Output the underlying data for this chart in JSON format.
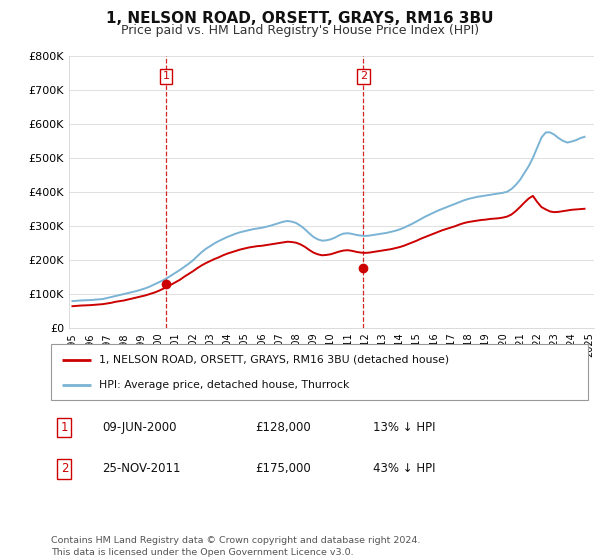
{
  "title": "1, NELSON ROAD, ORSETT, GRAYS, RM16 3BU",
  "subtitle": "Price paid vs. HM Land Registry's House Price Index (HPI)",
  "ylim": [
    0,
    800000
  ],
  "yticks": [
    0,
    100000,
    200000,
    300000,
    400000,
    500000,
    600000,
    700000,
    800000
  ],
  "ytick_labels": [
    "£0",
    "£100K",
    "£200K",
    "£300K",
    "£400K",
    "£500K",
    "£600K",
    "£700K",
    "£800K"
  ],
  "sale1_year": 2000.44,
  "sale1_price": 128000,
  "sale1_label": "1",
  "sale1_date": "09-JUN-2000",
  "sale1_pct": "13%",
  "sale2_year": 2011.9,
  "sale2_price": 175000,
  "sale2_label": "2",
  "sale2_date": "25-NOV-2011",
  "sale2_pct": "43%",
  "line_color_red": "#cc0000",
  "line_color_blue": "#7ab3d4",
  "marker_color_red": "#cc0000",
  "dashed_line_color": "#cc0000",
  "grid_color": "#e0e0e0",
  "legend_label_red": "1, NELSON ROAD, ORSETT, GRAYS, RM16 3BU (detached house)",
  "legend_label_blue": "HPI: Average price, detached house, Thurrock",
  "footer": "Contains HM Land Registry data © Crown copyright and database right 2024.\nThis data is licensed under the Open Government Licence v3.0.",
  "hpi_years": [
    1995.0,
    1995.25,
    1995.5,
    1995.75,
    1996.0,
    1996.25,
    1996.5,
    1996.75,
    1997.0,
    1997.25,
    1997.5,
    1997.75,
    1998.0,
    1998.25,
    1998.5,
    1998.75,
    1999.0,
    1999.25,
    1999.5,
    1999.75,
    2000.0,
    2000.25,
    2000.5,
    2000.75,
    2001.0,
    2001.25,
    2001.5,
    2001.75,
    2002.0,
    2002.25,
    2002.5,
    2002.75,
    2003.0,
    2003.25,
    2003.5,
    2003.75,
    2004.0,
    2004.25,
    2004.5,
    2004.75,
    2005.0,
    2005.25,
    2005.5,
    2005.75,
    2006.0,
    2006.25,
    2006.5,
    2006.75,
    2007.0,
    2007.25,
    2007.5,
    2007.75,
    2008.0,
    2008.25,
    2008.5,
    2008.75,
    2009.0,
    2009.25,
    2009.5,
    2009.75,
    2010.0,
    2010.25,
    2010.5,
    2010.75,
    2011.0,
    2011.25,
    2011.5,
    2011.75,
    2012.0,
    2012.25,
    2012.5,
    2012.75,
    2013.0,
    2013.25,
    2013.5,
    2013.75,
    2014.0,
    2014.25,
    2014.5,
    2014.75,
    2015.0,
    2015.25,
    2015.5,
    2015.75,
    2016.0,
    2016.25,
    2016.5,
    2016.75,
    2017.0,
    2017.25,
    2017.5,
    2017.75,
    2018.0,
    2018.25,
    2018.5,
    2018.75,
    2019.0,
    2019.25,
    2019.5,
    2019.75,
    2020.0,
    2020.25,
    2020.5,
    2020.75,
    2021.0,
    2021.25,
    2021.5,
    2021.75,
    2022.0,
    2022.25,
    2022.5,
    2022.75,
    2023.0,
    2023.25,
    2023.5,
    2023.75,
    2024.0,
    2024.25,
    2024.5,
    2024.75
  ],
  "hpi_values": [
    78000,
    79000,
    80000,
    80500,
    81000,
    82000,
    83000,
    84000,
    87000,
    90000,
    93000,
    96000,
    99000,
    102000,
    105000,
    108000,
    112000,
    116000,
    121000,
    127000,
    133000,
    139000,
    146000,
    154000,
    162000,
    170000,
    179000,
    188000,
    198000,
    210000,
    222000,
    232000,
    240000,
    248000,
    255000,
    261000,
    267000,
    272000,
    277000,
    281000,
    284000,
    287000,
    290000,
    292000,
    294000,
    297000,
    300000,
    304000,
    308000,
    312000,
    314000,
    312000,
    308000,
    300000,
    290000,
    278000,
    267000,
    260000,
    256000,
    257000,
    260000,
    265000,
    272000,
    277000,
    278000,
    276000,
    273000,
    271000,
    270000,
    271000,
    273000,
    275000,
    277000,
    279000,
    282000,
    285000,
    289000,
    294000,
    300000,
    306000,
    313000,
    320000,
    327000,
    333000,
    339000,
    345000,
    350000,
    355000,
    360000,
    365000,
    370000,
    375000,
    379000,
    382000,
    385000,
    387000,
    389000,
    391000,
    393000,
    395000,
    397000,
    400000,
    408000,
    420000,
    435000,
    455000,
    475000,
    500000,
    530000,
    560000,
    575000,
    575000,
    568000,
    558000,
    550000,
    545000,
    548000,
    552000,
    558000,
    562000
  ],
  "red_years": [
    1995.0,
    1995.25,
    1995.5,
    1995.75,
    1996.0,
    1996.25,
    1996.5,
    1996.75,
    1997.0,
    1997.25,
    1997.5,
    1997.75,
    1998.0,
    1998.25,
    1998.5,
    1998.75,
    1999.0,
    1999.25,
    1999.5,
    1999.75,
    2000.0,
    2000.25,
    2000.5,
    2000.75,
    2001.0,
    2001.25,
    2001.5,
    2001.75,
    2002.0,
    2002.25,
    2002.5,
    2002.75,
    2003.0,
    2003.25,
    2003.5,
    2003.75,
    2004.0,
    2004.25,
    2004.5,
    2004.75,
    2005.0,
    2005.25,
    2005.5,
    2005.75,
    2006.0,
    2006.25,
    2006.5,
    2006.75,
    2007.0,
    2007.25,
    2007.5,
    2007.75,
    2008.0,
    2008.25,
    2008.5,
    2008.75,
    2009.0,
    2009.25,
    2009.5,
    2009.75,
    2010.0,
    2010.25,
    2010.5,
    2010.75,
    2011.0,
    2011.25,
    2011.5,
    2011.75,
    2012.0,
    2012.25,
    2012.5,
    2012.75,
    2013.0,
    2013.25,
    2013.5,
    2013.75,
    2014.0,
    2014.25,
    2014.5,
    2014.75,
    2015.0,
    2015.25,
    2015.5,
    2015.75,
    2016.0,
    2016.25,
    2016.5,
    2016.75,
    2017.0,
    2017.25,
    2017.5,
    2017.75,
    2018.0,
    2018.25,
    2018.5,
    2018.75,
    2019.0,
    2019.25,
    2019.5,
    2019.75,
    2020.0,
    2020.25,
    2020.5,
    2020.75,
    2021.0,
    2021.25,
    2021.5,
    2021.75,
    2022.0,
    2022.25,
    2022.5,
    2022.75,
    2023.0,
    2023.25,
    2023.5,
    2023.75,
    2024.0,
    2024.25,
    2024.5,
    2024.75
  ],
  "red_values": [
    63000,
    64000,
    65000,
    65500,
    66000,
    67000,
    68000,
    69000,
    71000,
    73000,
    76000,
    78000,
    80000,
    83000,
    86000,
    89000,
    92000,
    95000,
    99000,
    103000,
    108000,
    114000,
    120000,
    127000,
    134000,
    141000,
    150000,
    158000,
    166000,
    175000,
    183000,
    190000,
    196000,
    202000,
    207000,
    213000,
    218000,
    222000,
    226000,
    230000,
    233000,
    236000,
    238000,
    240000,
    241000,
    243000,
    245000,
    247000,
    249000,
    251000,
    253000,
    252000,
    250000,
    245000,
    238000,
    229000,
    221000,
    216000,
    213000,
    214000,
    216000,
    220000,
    224000,
    227000,
    228000,
    226000,
    223000,
    221000,
    220000,
    221000,
    223000,
    225000,
    227000,
    229000,
    231000,
    234000,
    237000,
    241000,
    246000,
    251000,
    256000,
    262000,
    267000,
    272000,
    277000,
    282000,
    287000,
    291000,
    295000,
    299000,
    304000,
    308000,
    311000,
    313000,
    315000,
    317000,
    318000,
    320000,
    321000,
    322000,
    324000,
    327000,
    333000,
    343000,
    355000,
    368000,
    380000,
    388000,
    370000,
    355000,
    348000,
    342000,
    340000,
    341000,
    343000,
    345000,
    347000,
    348000,
    349000,
    350000
  ]
}
